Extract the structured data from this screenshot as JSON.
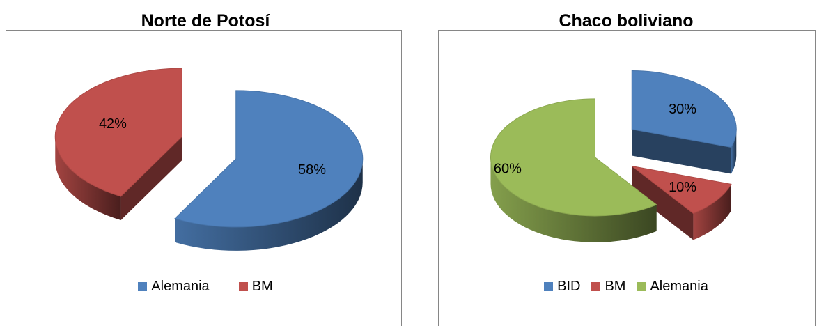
{
  "chart_data": [
    {
      "type": "pie",
      "title": "Norte de Potosí",
      "slices": [
        {
          "name": "Alemania",
          "value": 58,
          "label": "58%",
          "color": "#4F81BD"
        },
        {
          "name": "BM",
          "value": 42,
          "label": "42%",
          "color": "#C0504D"
        }
      ],
      "legend": {
        "position": "bottom",
        "entries": [
          "Alemania",
          "BM"
        ]
      },
      "style": "3d-exploded"
    },
    {
      "type": "pie",
      "title": "Chaco boliviano",
      "slices": [
        {
          "name": "BID",
          "value": 30,
          "label": "30%",
          "color": "#4F81BD"
        },
        {
          "name": "BM",
          "value": 10,
          "label": "10%",
          "color": "#C0504D"
        },
        {
          "name": "Alemania",
          "value": 60,
          "label": "60%",
          "color": "#9BBB59"
        }
      ],
      "legend": {
        "position": "bottom",
        "entries": [
          "BID",
          "BM",
          "Alemania"
        ]
      },
      "style": "3d-exploded"
    }
  ]
}
